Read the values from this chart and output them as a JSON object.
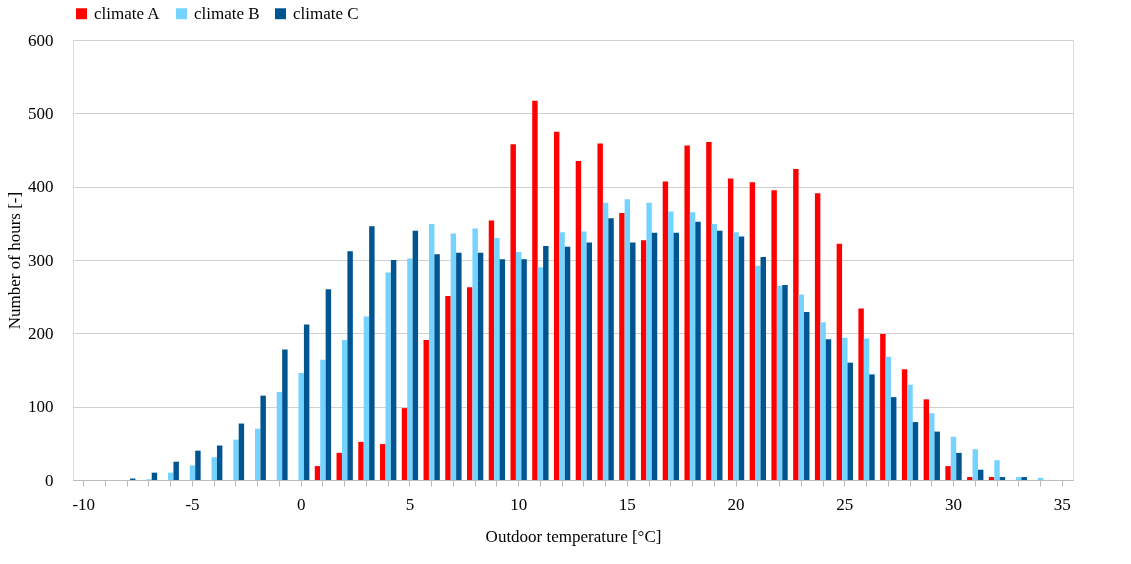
{
  "chart_data": {
    "type": "bar",
    "xlabel": "Outdoor temperature [°C]",
    "ylabel": "Number of hours [-]",
    "categories": [
      "-10",
      null,
      null,
      null,
      null,
      "-5",
      null,
      null,
      null,
      null,
      "0",
      null,
      null,
      null,
      null,
      "5",
      null,
      null,
      null,
      null,
      "10",
      null,
      null,
      null,
      null,
      "15",
      null,
      null,
      null,
      null,
      "20",
      null,
      null,
      null,
      null,
      "25",
      null,
      null,
      null,
      null,
      "30",
      null,
      null,
      null,
      null,
      "35"
    ],
    "series": [
      {
        "name": "climate A",
        "color": "#ff0000",
        "values": [
          0,
          0,
          0,
          0,
          0,
          0,
          0,
          0,
          0,
          0,
          0,
          19,
          37,
          52,
          49,
          98,
          191,
          251,
          263,
          354,
          458,
          517,
          475,
          435,
          459,
          364,
          327,
          407,
          456,
          461,
          411,
          406,
          395,
          424,
          391,
          322,
          234,
          199,
          151,
          110,
          19,
          4,
          4,
          0,
          0,
          0
        ]
      },
      {
        "name": "climate B",
        "color": "#75d3ff",
        "values": [
          0,
          0,
          0,
          1,
          10,
          20,
          31,
          55,
          70,
          120,
          146,
          164,
          191,
          223,
          283,
          302,
          349,
          336,
          343,
          330,
          311,
          290,
          338,
          339,
          378,
          383,
          378,
          366,
          365,
          349,
          338,
          292,
          265,
          253,
          215,
          194,
          193,
          168,
          130,
          91,
          59,
          42,
          27,
          4,
          3,
          0
        ]
      },
      {
        "name": "climate C",
        "color": "#00548f",
        "values": [
          0,
          0,
          2,
          10,
          25,
          40,
          47,
          77,
          115,
          178,
          212,
          260,
          312,
          346,
          300,
          340,
          308,
          310,
          310,
          301,
          301,
          319,
          318,
          324,
          357,
          324,
          337,
          337,
          352,
          340,
          332,
          304,
          266,
          229,
          192,
          160,
          144,
          113,
          79,
          66,
          37,
          14,
          4,
          4,
          0,
          0
        ]
      }
    ],
    "ylim": [
      0,
      600
    ],
    "yticks": [
      0,
      100,
      200,
      300,
      400,
      500,
      600
    ],
    "grid": "y",
    "legend": "top"
  }
}
